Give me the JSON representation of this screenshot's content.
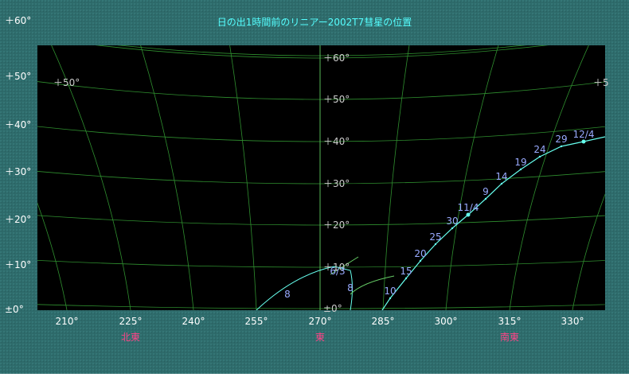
{
  "title": "日の出1時間前のリニアー2002T7彗星の位置",
  "altitude_labels_left": [
    "＋60°",
    "＋50°",
    "＋40°",
    "＋30°",
    "＋20°",
    "＋10°",
    "±0°"
  ],
  "altitude_labels_center": [
    "＋60°",
    "＋50°",
    "＋40°",
    "＋30°",
    "＋20°",
    "＋10°",
    "±0°"
  ],
  "altitude_labels_inner": [
    "＋50°",
    "＋5"
  ],
  "azimuth_labels": [
    "210°",
    "225°",
    "240°",
    "255°",
    "270°",
    "285°",
    "300°",
    "315°",
    "330°"
  ],
  "direction_labels": [
    "北東",
    "東",
    "南東"
  ],
  "early_path_labels": [
    "8",
    "6/3",
    "8"
  ],
  "path_labels": [
    "10",
    "15",
    "20",
    "25",
    "30",
    "11/4",
    "9",
    "14",
    "19",
    "24",
    "29",
    "12/4"
  ]
}
